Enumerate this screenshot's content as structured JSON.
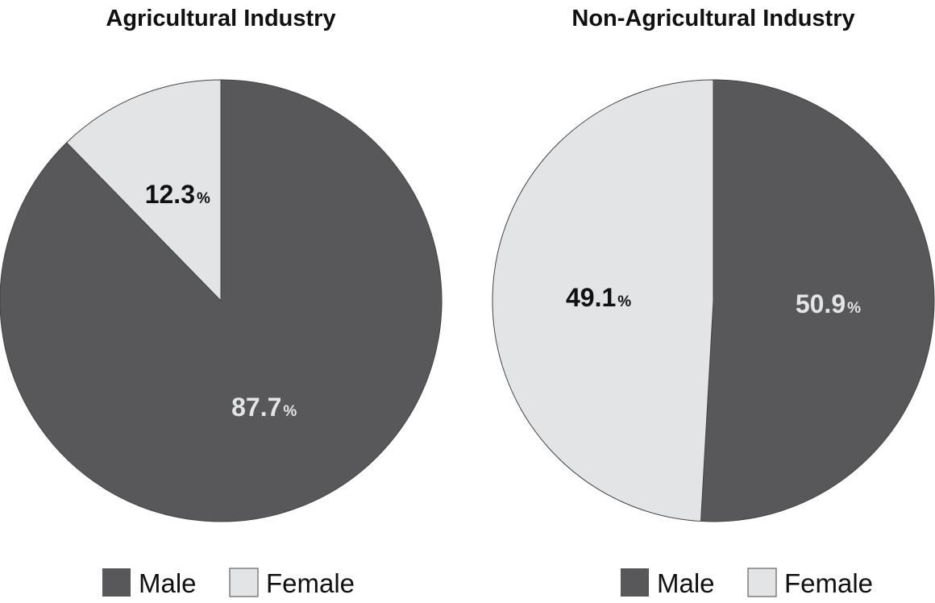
{
  "chart_data": [
    {
      "type": "pie",
      "title": "Agricultural Industry",
      "slices": [
        {
          "label": "Male",
          "value": 87.7,
          "display": "87.7",
          "unit": "%",
          "color": "#58585a",
          "label_color": "#e3e4e6"
        },
        {
          "label": "Female",
          "value": 12.3,
          "display": "12.3",
          "unit": "%",
          "color": "#e3e4e6",
          "label_color": "#111111"
        }
      ],
      "start": "12 o'clock",
      "direction": "clockwise",
      "legend": {
        "position": "bottom",
        "items": [
          {
            "label": "Male",
            "color": "#58585a"
          },
          {
            "label": "Female",
            "color": "#e3e4e6"
          }
        ]
      }
    },
    {
      "type": "pie",
      "title": "Non-Agricultural Industry",
      "slices": [
        {
          "label": "Male",
          "value": 50.9,
          "display": "50.9",
          "unit": "%",
          "color": "#58585a",
          "label_color": "#e3e4e6"
        },
        {
          "label": "Female",
          "value": 49.1,
          "display": "49.1",
          "unit": "%",
          "color": "#e3e4e6",
          "label_color": "#111111"
        }
      ],
      "start": "12 o'clock",
      "direction": "clockwise",
      "legend": {
        "position": "bottom",
        "items": [
          {
            "label": "Male",
            "color": "#58585a"
          },
          {
            "label": "Female",
            "color": "#e3e4e6"
          }
        ]
      }
    }
  ]
}
